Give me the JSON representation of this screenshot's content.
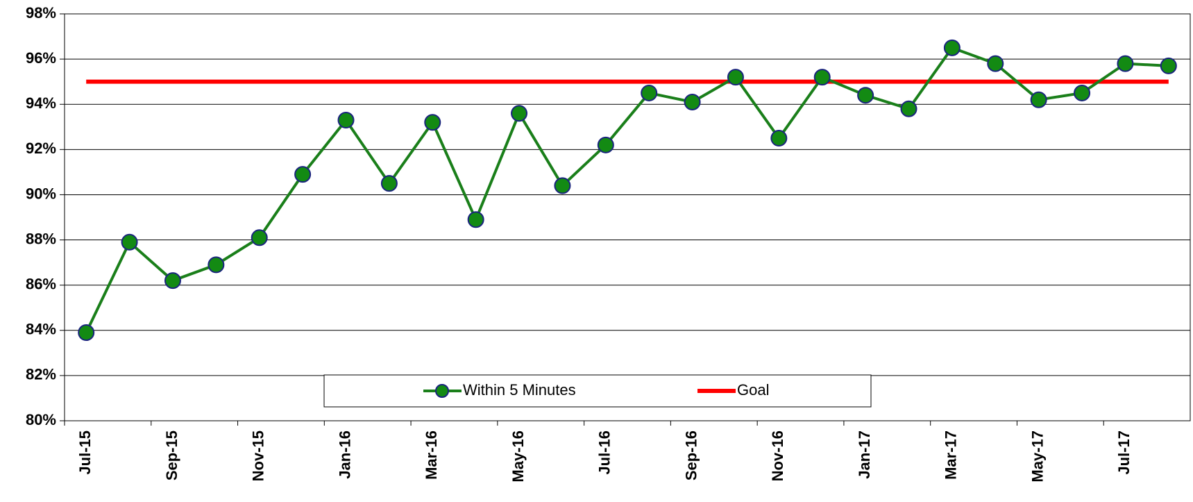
{
  "chart_data": {
    "type": "line",
    "categories": [
      "Jul-15",
      null,
      "Sep-15",
      null,
      "Nov-15",
      null,
      "Jan-16",
      null,
      "Mar-16",
      null,
      "May-16",
      null,
      "Jul-16",
      null,
      "Sep-16",
      null,
      "Nov-16",
      null,
      "Jan-17",
      null,
      "Mar-17",
      null,
      "May-17",
      null,
      "Jul-17",
      null
    ],
    "series": [
      {
        "name": "Within 5 Minutes",
        "color": "#1a7f1a",
        "marker_color": "#138a13",
        "marker_edge": "#1a237e",
        "values": [
          83.9,
          87.9,
          86.2,
          86.9,
          88.1,
          90.9,
          93.3,
          90.5,
          93.2,
          88.9,
          93.6,
          90.4,
          92.2,
          94.5,
          94.1,
          95.2,
          92.5,
          95.2,
          94.4,
          93.8,
          96.5,
          95.8,
          94.2,
          94.5,
          95.8,
          95.7
        ]
      },
      {
        "name": "Goal",
        "color": "#ff0000",
        "values": [
          95,
          95,
          95,
          95,
          95,
          95,
          95,
          95,
          95,
          95,
          95,
          95,
          95,
          95,
          95,
          95,
          95,
          95,
          95,
          95,
          95,
          95,
          95,
          95,
          95,
          95
        ]
      }
    ],
    "ylim": [
      80,
      98
    ],
    "yticks": [
      {
        "value": 80,
        "label": "80%"
      },
      {
        "value": 82,
        "label": "82%"
      },
      {
        "value": 84,
        "label": "84%"
      },
      {
        "value": 86,
        "label": "86%"
      },
      {
        "value": 88,
        "label": "88%"
      },
      {
        "value": 90,
        "label": "90%"
      },
      {
        "value": 92,
        "label": "92%"
      },
      {
        "value": 94,
        "label": "94%"
      },
      {
        "value": 96,
        "label": "96%"
      },
      {
        "value": 98,
        "label": "98%"
      }
    ],
    "grid": true,
    "legend": "bottom"
  }
}
